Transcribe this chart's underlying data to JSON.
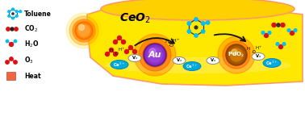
{
  "bg_color": "#ffffff",
  "ceo2_color": "#FFE800",
  "ceo2_edge": "#ff9966",
  "ceo2_label": "CeO$_2$",
  "au_color_outer": "#ff4400",
  "au_color_mid": "#8B2FC9",
  "au_color_inner": "#A040D0",
  "au_highlight": "#CC88EE",
  "au_label": "Au",
  "pdox_color_outer": "#ff4400",
  "pdox_color_mid": "#cc6600",
  "pdox_color_inner": "#dd8800",
  "pdox_highlight": "#ffcc66",
  "pdox_label": "PdO$_x$",
  "sun_color_core": "#FF8C00",
  "sun_color_mid": "#FFA500",
  "sun_color_outer": "#FFD700",
  "ce3_face": "#00AADD",
  "ce3_edge": "#0088BB",
  "ce3_label": "Ce$^{3+}$",
  "vo_face": "#ffffff",
  "vo_edge": "#888888",
  "vo_label": "V$_o$",
  "o3_color": "#dd1111",
  "toluene_c": "#333333",
  "toluene_h": "#00BFFF",
  "co2_o": "#dd1111",
  "co2_c": "#333333",
  "h2o_o": "#dd1111",
  "h2o_h": "#00BFFF",
  "arrow_color": "#111111",
  "legend_fontsize": 5.5,
  "legend_bold": true
}
